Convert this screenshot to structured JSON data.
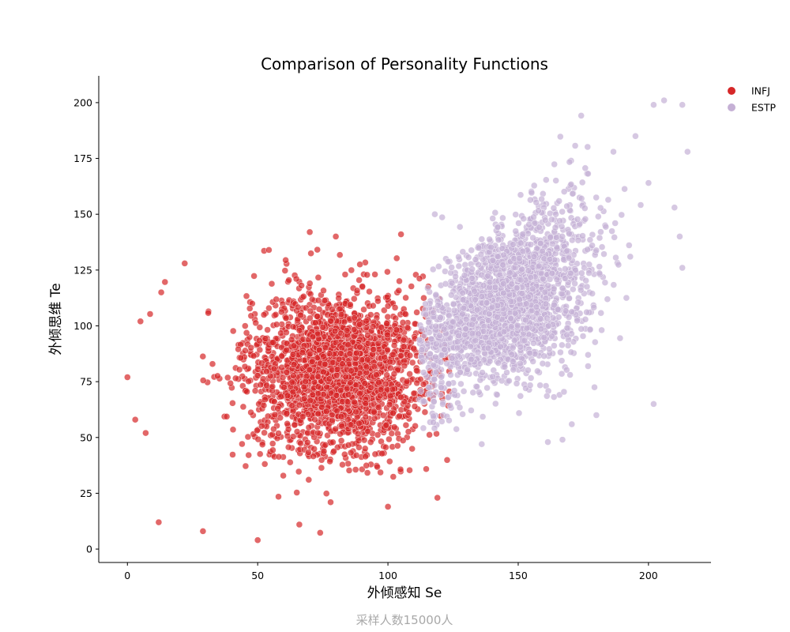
{
  "chart_data": {
    "type": "scatter",
    "title": "Comparison of Personality Functions",
    "xlabel": "外倾感知 Se",
    "ylabel": "外倾思维 Te",
    "footnote": "采样人数15000人",
    "xlim": [
      -11,
      224
    ],
    "ylim": [
      -6,
      212
    ],
    "xticks": [
      0,
      50,
      100,
      150,
      200
    ],
    "yticks": [
      0,
      25,
      50,
      75,
      100,
      125,
      150,
      175,
      200
    ],
    "grid": false,
    "legend_position": "top-right outside plot",
    "series": [
      {
        "name": "INFJ",
        "color": "#d62728",
        "approx_count": 7500,
        "center": [
          80,
          80
        ],
        "spread": [
          17,
          18
        ],
        "outliers": [
          [
            0,
            77
          ],
          [
            5,
            102
          ],
          [
            12,
            12
          ],
          [
            29,
            8
          ],
          [
            50,
            4
          ],
          [
            66,
            11
          ],
          [
            78,
            21
          ],
          [
            100,
            19
          ],
          [
            119,
            23
          ],
          [
            70,
            142
          ],
          [
            80,
            140
          ],
          [
            105,
            141
          ],
          [
            22,
            128
          ],
          [
            13,
            115
          ],
          [
            3,
            58
          ],
          [
            7,
            52
          ]
        ]
      },
      {
        "name": "ESTP",
        "color": "#c5b0d5",
        "approx_count": 7500,
        "center": [
          145,
          110
        ],
        "spread": [
          16,
          18
        ],
        "outliers": [
          [
            206,
            201
          ],
          [
            213,
            199
          ],
          [
            202,
            199
          ],
          [
            215,
            178
          ],
          [
            210,
            153
          ],
          [
            212,
            140
          ],
          [
            213,
            126
          ],
          [
            202,
            65
          ],
          [
            180,
            60
          ],
          [
            167,
            49
          ],
          [
            136,
            47
          ],
          [
            118,
            150
          ],
          [
            195,
            185
          ],
          [
            200,
            164
          ],
          [
            193,
            131
          ]
        ]
      }
    ]
  }
}
